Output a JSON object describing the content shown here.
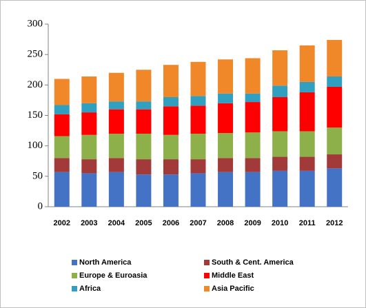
{
  "chart_data": {
    "type": "stacked-bar",
    "categories": [
      "2002",
      "2003",
      "2004",
      "2005",
      "2006",
      "2007",
      "2008",
      "2009",
      "2010",
      "2011",
      "2012"
    ],
    "series": [
      {
        "name": "North America",
        "color": "#4472c4",
        "values": [
          57,
          55,
          57,
          53,
          53,
          55,
          57,
          57,
          59,
          59,
          63
        ]
      },
      {
        "name": "South & Cent. America",
        "color": "#a33a3a",
        "values": [
          23,
          23,
          23,
          25,
          25,
          23,
          23,
          23,
          23,
          23,
          23
        ]
      },
      {
        "name": "Europe & Euroasia",
        "color": "#8db04a",
        "values": [
          36,
          40,
          40,
          42,
          40,
          42,
          41,
          42,
          42,
          42,
          44
        ]
      },
      {
        "name": "Middle East",
        "color": "#ff0000",
        "values": [
          36,
          37,
          40,
          40,
          47,
          46,
          49,
          50,
          56,
          64,
          67
        ]
      },
      {
        "name": "Africa",
        "color": "#31a0c0",
        "values": [
          15,
          15,
          13,
          13,
          15,
          16,
          16,
          14,
          19,
          17,
          17
        ]
      },
      {
        "name": "Asia Pacific",
        "color": "#f0882a",
        "values": [
          43,
          44,
          47,
          52,
          53,
          56,
          56,
          58,
          58,
          60,
          60
        ]
      }
    ],
    "ylim": [
      0,
      300
    ],
    "yticks": [
      0,
      50,
      100,
      150,
      200,
      250,
      300
    ],
    "grid": false,
    "legend": "bottom"
  }
}
